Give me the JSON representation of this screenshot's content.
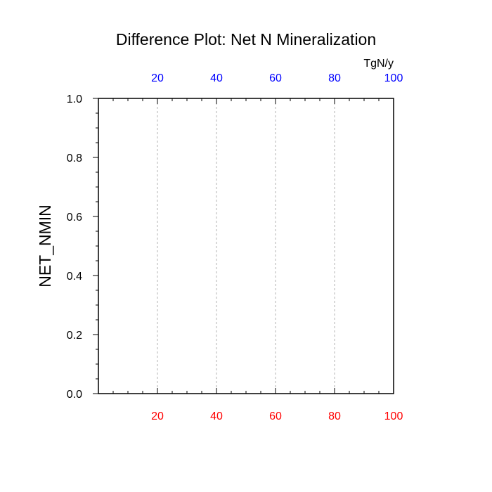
{
  "chart_data": {
    "type": "line",
    "title": "Difference Plot: Net N Mineralization",
    "ylabel": "NET_NMIN",
    "top_axis_units": "TgN/y",
    "xlim": [
      0,
      100
    ],
    "ylim": [
      0.0,
      1.0
    ],
    "bottom_xticks": [
      "20",
      "40",
      "60",
      "80",
      "100"
    ],
    "top_xticks": [
      "20",
      "40",
      "60",
      "80",
      "100"
    ],
    "yticks": [
      "0.0",
      "0.2",
      "0.4",
      "0.6",
      "0.8",
      "1.0"
    ],
    "bottom_tick_color": "#ff0000",
    "top_tick_color": "#0000ff",
    "vertical_gridlines_at": [
      20,
      40,
      60,
      80
    ],
    "grid": "vertical dashed",
    "series": []
  }
}
